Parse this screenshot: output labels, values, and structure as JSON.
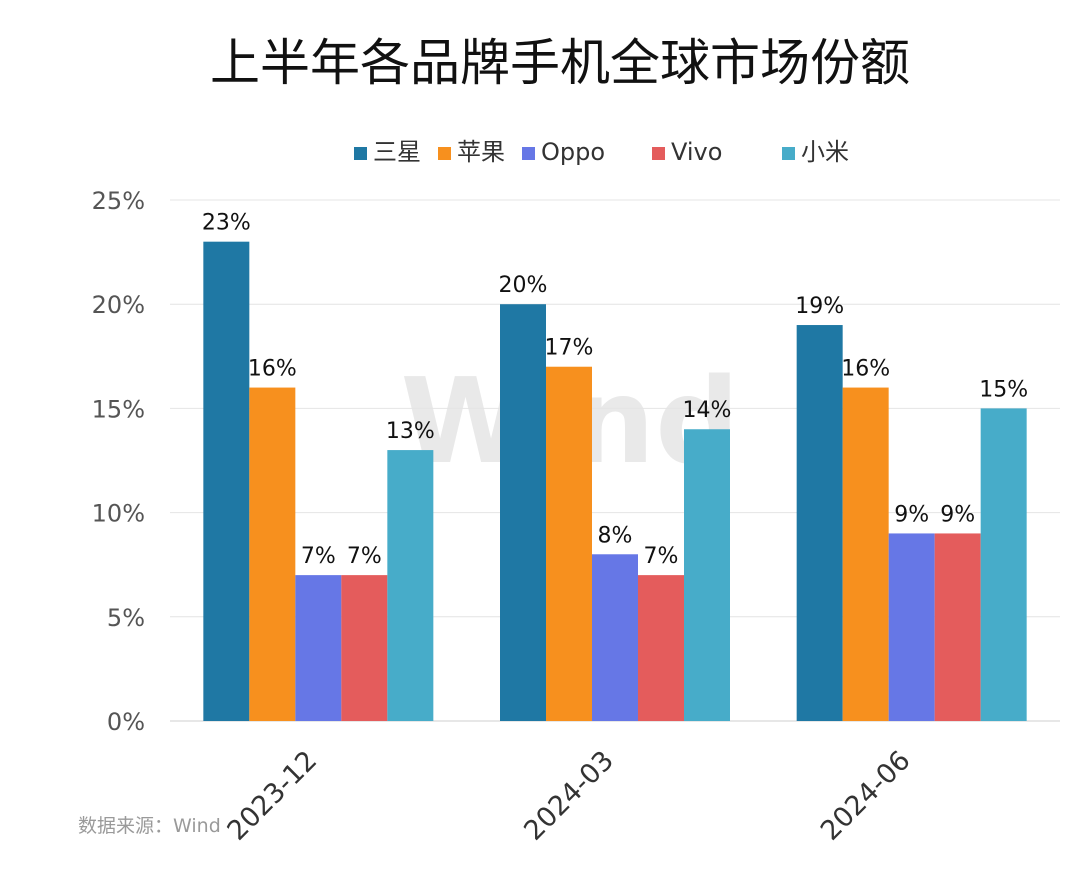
{
  "chart_data": {
    "type": "bar",
    "title": "上半年各品牌手机全球市场份额",
    "categories": [
      "2023-12",
      "2024-03",
      "2024-06"
    ],
    "series": [
      {
        "name": "三星",
        "values": [
          23,
          20,
          19
        ],
        "labels": [
          "23%",
          "20%",
          "19%"
        ],
        "color": "#1F78A4"
      },
      {
        "name": "苹果",
        "values": [
          16,
          17,
          16
        ],
        "labels": [
          "16%",
          "17%",
          "16%"
        ],
        "color": "#F7901E"
      },
      {
        "name": "Oppo",
        "values": [
          7,
          8,
          9
        ],
        "labels": [
          "7%",
          "8%",
          "9%"
        ],
        "color": "#6677E6"
      },
      {
        "name": "Vivo",
        "values": [
          7,
          7,
          9
        ],
        "labels": [
          "7%",
          "7%",
          "9%"
        ],
        "color": "#E45C5C"
      },
      {
        "name": "小米",
        "values": [
          13,
          14,
          15
        ],
        "labels": [
          "13%",
          "14%",
          "15%"
        ],
        "color": "#47ACC9"
      }
    ],
    "y_ticks": [
      "0%",
      "5%",
      "10%",
      "15%",
      "20%",
      "25%"
    ],
    "ylim": [
      0,
      25
    ],
    "grid": true,
    "legend_position": "top-center",
    "xlabel": "",
    "ylabel": "",
    "source": "数据来源：Wind",
    "watermark": "Wind"
  }
}
